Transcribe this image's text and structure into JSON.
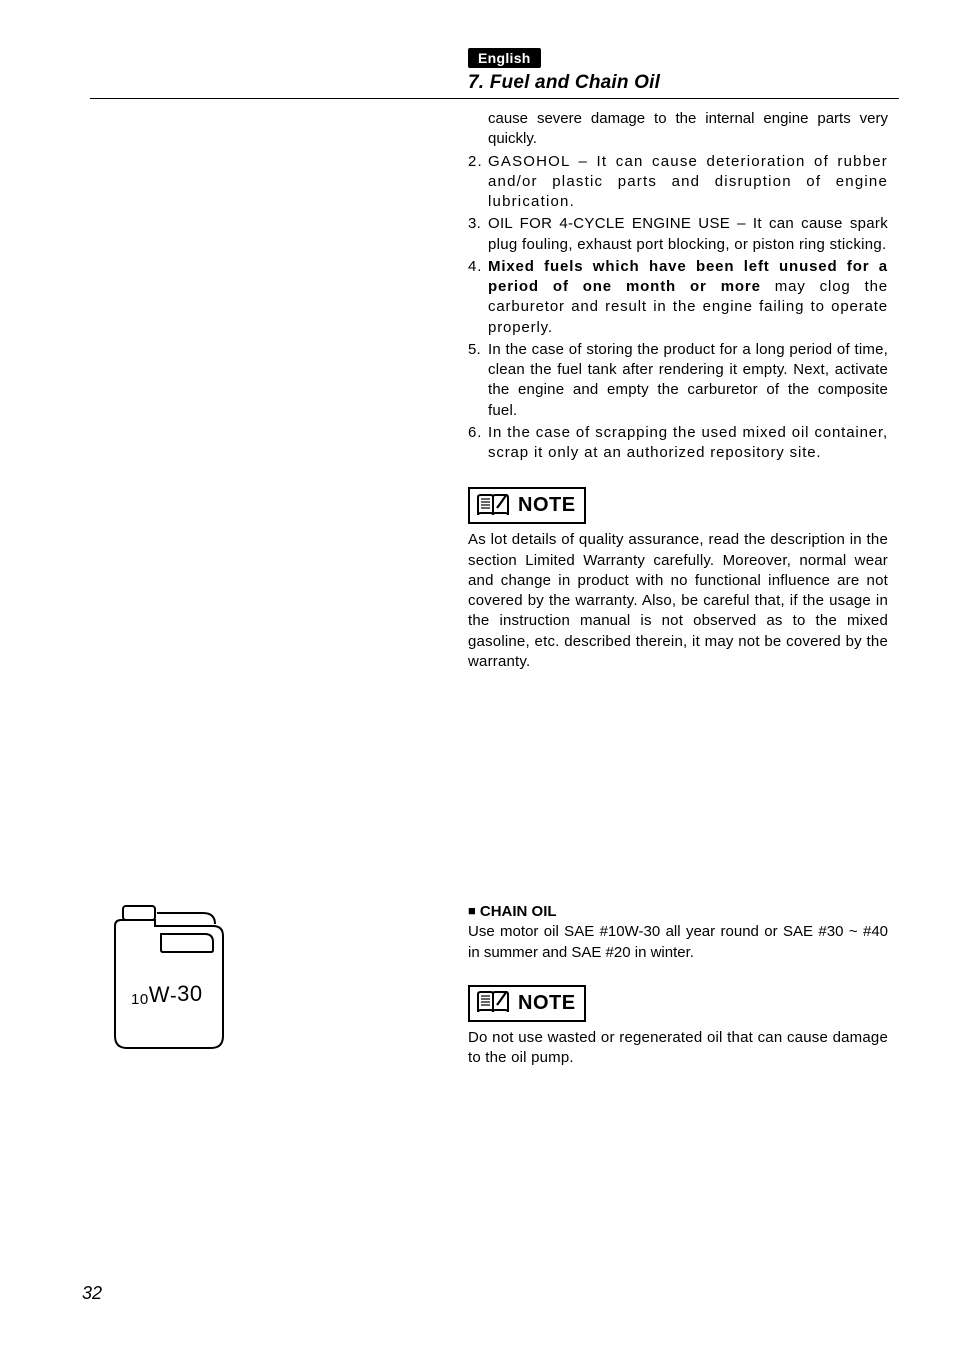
{
  "header": {
    "lang_badge": "English",
    "section_title": "7. Fuel and Chain Oil"
  },
  "continuation_text": "cause severe damage to the internal engine parts very quickly.",
  "items": [
    {
      "num": "2.",
      "segments": [
        {
          "text": "GASOHOL – It can cause deterioration of rubber and/or plastic parts and disruption of engine lubrication.",
          "bold": false
        }
      ],
      "letter_spacing": "1.2px"
    },
    {
      "num": "3.",
      "segments": [
        {
          "text": "OIL FOR 4-CYCLE ENGINE USE – It can cause spark plug  fouling, exhaust port blocking, or piston ring sticking.",
          "bold": false
        }
      ],
      "letter_spacing": "0.3px"
    },
    {
      "num": "4.",
      "segments": [
        {
          "text": "Mixed fuels which have been left unused for a period of one month or more",
          "bold": true
        },
        {
          "text": " may clog the carburetor and result in the engine failing to operate properly.",
          "bold": false
        }
      ],
      "letter_spacing": "0.85px"
    },
    {
      "num": "5.",
      "segments": [
        {
          "text": "In the case of storing the product for a long period of time, clean the fuel tank after rendering it empty. Next, activate the engine and empty the carburetor of the composite fuel.",
          "bold": false
        }
      ],
      "letter_spacing": "0.2px"
    },
    {
      "num": "6.",
      "segments": [
        {
          "text": "In the case of scrapping the used mixed oil container, scrap it only at an authorized repository site.",
          "bold": false
        }
      ],
      "letter_spacing": "0.85px"
    }
  ],
  "note1": {
    "label": "NOTE",
    "text": "As lot details of quality assurance, read the description in the section Limited Warranty carefully.  Moreover, normal wear and change in product with no functional influence are not covered by the warranty. Also, be careful that, if the usage in the instruction manual is not observed as to the mixed gasoline, etc. described therein, it may not be covered by the warranty."
  },
  "chain": {
    "heading": "CHAIN OIL",
    "text1": "Use motor oil SAE #10W-30 all year round or SAE #30 ~ #40 in summer and SAE #20 in winter."
  },
  "note2": {
    "label": "NOTE",
    "text": "Do not use wasted or regenerated oil that can cause damage to the oil pump."
  },
  "oil_figure_label": "10W-30",
  "page_number": "32",
  "colors": {
    "text": "#000000",
    "bg": "#ffffff",
    "badge_bg": "#000000",
    "badge_fg": "#ffffff"
  }
}
